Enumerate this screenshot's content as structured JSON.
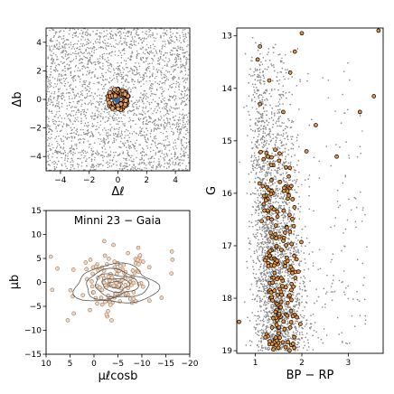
{
  "chart_data": [
    {
      "panel": "top-left",
      "type": "scatter",
      "xlabel": "Δℓ",
      "ylabel": "Δb",
      "xlim": [
        -5,
        5
      ],
      "ylim": [
        -5,
        5
      ],
      "xticks": [
        -4,
        -2,
        0,
        2,
        4
      ],
      "yticks": [
        -4,
        -2,
        0,
        2,
        4
      ],
      "field": {
        "n_points": 2600,
        "color": "#8c8c8c"
      },
      "cluster": {
        "center": [
          0,
          0
        ],
        "radius": 0.75,
        "n_members": 110,
        "fill": "#e8a060",
        "edge": "#000000",
        "core_color": "#2b6cb0"
      }
    },
    {
      "panel": "bottom-left",
      "type": "scatter",
      "title": "Minni 23  −  Gaia",
      "xlabel": "μℓcosb",
      "ylabel": "μb",
      "xlim": [
        10,
        -20
      ],
      "ylim": [
        -15,
        15
      ],
      "xticks": [
        10,
        5,
        0,
        -5,
        -10,
        -15,
        -20
      ],
      "yticks": [
        -15,
        -10,
        -5,
        0,
        5,
        10,
        15
      ],
      "points": {
        "n_points": 140,
        "center": [
          -4.5,
          -0.2
        ],
        "spread": [
          3.2,
          2.6
        ],
        "fill": "#f2d7bf",
        "edge": "#a0785a"
      },
      "contours": {
        "center": [
          -4.5,
          -0.5
        ],
        "radii": [
          [
            8.5,
            4.0
          ],
          [
            6.5,
            3.0
          ],
          [
            4.5,
            2.2
          ],
          [
            2.8,
            1.4
          ],
          [
            1.4,
            0.7
          ]
        ],
        "color": "#5a5a5a"
      }
    },
    {
      "panel": "right",
      "type": "scatter",
      "xlabel": "BP − RP",
      "ylabel": "G",
      "xlim": [
        0.6,
        3.75
      ],
      "ylim": [
        19.05,
        12.85
      ],
      "xticks": [
        1,
        2,
        3
      ],
      "yticks": [
        13,
        14,
        15,
        16,
        17,
        18,
        19
      ],
      "field": {
        "n_points": 5200,
        "color": "#8c8c8c"
      },
      "members": {
        "n_points": 190,
        "fill": "#e8913a",
        "edge": "#000000"
      }
    }
  ]
}
